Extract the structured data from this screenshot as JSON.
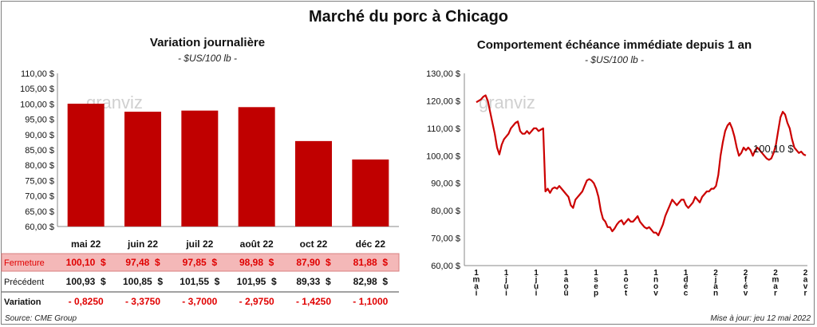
{
  "title": "Marché du porc à Chicago",
  "source": "Source: CME Group",
  "update": "Mise à jour: jeu 12 mai 2022",
  "colors": {
    "bar": "#c00000",
    "line": "#cc0000",
    "fermeture_bg": "#f4b8b8",
    "negative": "#e00000"
  },
  "watermark": "granviz",
  "chart_data": [
    {
      "type": "bar",
      "title": "Variation journalière",
      "unit_label": "- $US/100 lb -",
      "categories": [
        "mai 22",
        "juin 22",
        "juil 22",
        "août 22",
        "oct 22",
        "déc 22"
      ],
      "values": [
        100.1,
        97.48,
        97.85,
        98.98,
        87.9,
        81.88
      ],
      "ylim": [
        60,
        110
      ],
      "yticks": [
        "110,00 $",
        "105,00 $",
        "100,00 $",
        "95,00 $",
        "90,00 $",
        "85,00 $",
        "80,00 $",
        "75,00 $",
        "70,00 $",
        "65,00 $",
        "60,00 $"
      ],
      "grid": false,
      "table": {
        "rows": [
          {
            "label": "Fermeture",
            "cells": [
              "100,10  $",
              "97,48  $",
              "97,85  $",
              "98,98  $",
              "87,90  $",
              "81,88  $"
            ]
          },
          {
            "label": "Précédent",
            "cells": [
              "100,93  $",
              "100,85  $",
              "101,55  $",
              "101,95  $",
              "89,33  $",
              "82,98  $"
            ]
          },
          {
            "label": "Variation",
            "cells": [
              "- 0,8250",
              "- 3,3750",
              "- 3,7000",
              "- 2,9750",
              "- 1,4250",
              "- 1,1000"
            ]
          }
        ]
      }
    },
    {
      "type": "line",
      "title": "Comportement  échéance immédiate depuis 1 an",
      "unit_label": "- $US/100 lb -",
      "ylim": [
        60,
        130
      ],
      "yticks": [
        "130,00 $",
        "120,00 $",
        "110,00 $",
        "100,00 $",
        "90,00 $",
        "80,00 $",
        "70,00 $",
        "60,00 $"
      ],
      "xticks": [
        "1\nm\na\ni",
        "1\nj\nu\ni",
        "1\nj\nu\ni",
        "1\na\no\nû",
        "1\ns\ne\np",
        "1\no\nc\nt",
        "1\nn\no\nv",
        "1\nd\né\nc",
        "2\nj\na\nn",
        "2\nf\né\nv",
        "2\nm\na\nr",
        "2\na\nv\nr"
      ],
      "last_value_label": "100,10 $",
      "grid": false,
      "series": [
        {
          "points": [
            [
              0,
              119.5
            ],
            [
              1,
              120
            ],
            [
              2,
              120.5
            ],
            [
              3,
              121.5
            ],
            [
              4,
              122
            ],
            [
              5,
              120
            ],
            [
              6,
              116
            ],
            [
              7,
              112
            ],
            [
              8,
              108
            ],
            [
              9,
              103
            ],
            [
              10,
              100.5
            ],
            [
              11,
              104
            ],
            [
              12,
              106
            ],
            [
              13,
              107
            ],
            [
              14,
              108
            ],
            [
              15,
              110
            ],
            [
              16,
              111
            ],
            [
              17,
              112
            ],
            [
              18,
              112.5
            ],
            [
              19,
              109
            ],
            [
              20,
              108
            ],
            [
              21,
              108
            ],
            [
              22,
              109
            ],
            [
              23,
              108
            ],
            [
              24,
              109
            ],
            [
              25,
              110
            ],
            [
              26,
              110
            ],
            [
              27,
              109
            ],
            [
              28,
              109.5
            ],
            [
              29,
              110
            ],
            [
              30,
              87
            ],
            [
              31,
              88
            ],
            [
              32,
              86.5
            ],
            [
              33,
              88
            ],
            [
              34,
              88.5
            ],
            [
              35,
              88
            ],
            [
              36,
              89
            ],
            [
              37,
              88
            ],
            [
              38,
              87
            ],
            [
              39,
              86
            ],
            [
              40,
              85
            ],
            [
              41,
              82
            ],
            [
              42,
              81
            ],
            [
              43,
              84
            ],
            [
              44,
              85
            ],
            [
              45,
              86
            ],
            [
              46,
              87
            ],
            [
              47,
              89
            ],
            [
              48,
              91
            ],
            [
              49,
              91.5
            ],
            [
              50,
              91
            ],
            [
              51,
              90
            ],
            [
              52,
              88
            ],
            [
              53,
              85
            ],
            [
              54,
              80
            ],
            [
              55,
              77
            ],
            [
              56,
              76
            ],
            [
              57,
              74
            ],
            [
              58,
              74
            ],
            [
              59,
              72.5
            ],
            [
              60,
              73.5
            ],
            [
              61,
              75
            ],
            [
              62,
              76
            ],
            [
              63,
              76.5
            ],
            [
              64,
              75
            ],
            [
              65,
              76
            ],
            [
              66,
              77
            ],
            [
              67,
              76
            ],
            [
              68,
              76
            ],
            [
              69,
              77
            ],
            [
              70,
              78
            ],
            [
              71,
              76
            ],
            [
              72,
              75
            ],
            [
              73,
              74
            ],
            [
              74,
              73.5
            ],
            [
              75,
              74
            ],
            [
              76,
              73
            ],
            [
              77,
              72
            ],
            [
              78,
              72
            ],
            [
              79,
              71
            ],
            [
              80,
              73
            ],
            [
              81,
              75
            ],
            [
              82,
              78
            ],
            [
              83,
              80
            ],
            [
              84,
              82
            ],
            [
              85,
              84
            ],
            [
              86,
              83
            ],
            [
              87,
              82
            ],
            [
              88,
              83
            ],
            [
              89,
              84
            ],
            [
              90,
              84
            ],
            [
              91,
              82
            ],
            [
              92,
              81
            ],
            [
              93,
              82
            ],
            [
              94,
              83
            ],
            [
              95,
              85
            ],
            [
              96,
              84
            ],
            [
              97,
              83
            ],
            [
              98,
              85
            ],
            [
              99,
              86
            ],
            [
              100,
              87
            ],
            [
              101,
              87
            ],
            [
              102,
              88
            ],
            [
              103,
              88
            ],
            [
              104,
              89
            ],
            [
              105,
              93
            ],
            [
              106,
              100
            ],
            [
              107,
              105
            ],
            [
              108,
              109
            ],
            [
              109,
              111
            ],
            [
              110,
              112
            ],
            [
              111,
              110
            ],
            [
              112,
              107
            ],
            [
              113,
              103
            ],
            [
              114,
              100
            ],
            [
              115,
              101
            ],
            [
              116,
              103
            ],
            [
              117,
              102
            ],
            [
              118,
              103
            ],
            [
              119,
              102
            ],
            [
              120,
              100
            ],
            [
              121,
              102
            ],
            [
              122,
              103
            ],
            [
              123,
              102
            ],
            [
              124,
              101
            ],
            [
              125,
              100
            ],
            [
              126,
              99
            ],
            [
              127,
              98.5
            ],
            [
              128,
              99
            ],
            [
              129,
              101
            ],
            [
              130,
              104
            ],
            [
              131,
              109
            ],
            [
              132,
              114
            ],
            [
              133,
              116
            ],
            [
              134,
              115
            ],
            [
              135,
              112
            ],
            [
              136,
              110
            ],
            [
              137,
              106
            ],
            [
              138,
              103
            ],
            [
              139,
              102
            ],
            [
              140,
              101
            ],
            [
              141,
              101.5
            ],
            [
              142,
              100.5
            ],
            [
              143,
              100.1
            ]
          ]
        }
      ]
    }
  ]
}
